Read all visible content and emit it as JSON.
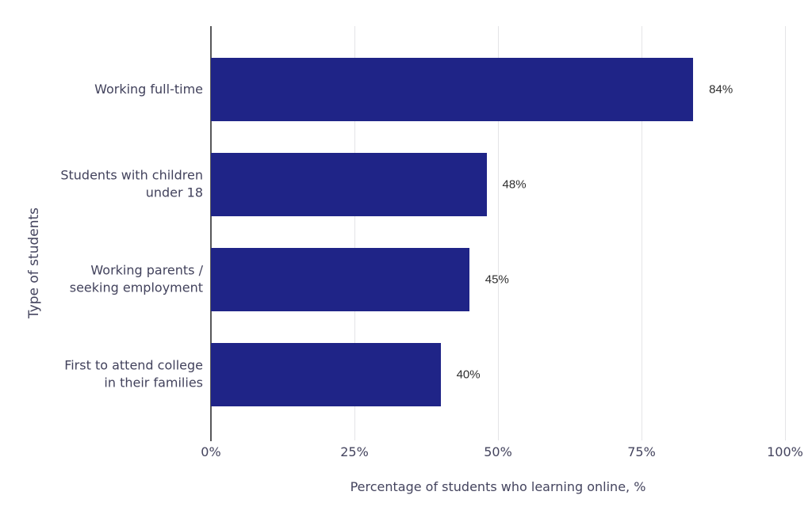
{
  "chart_data": {
    "type": "bar",
    "orientation": "horizontal",
    "title": "",
    "categories": [
      "Working full-time",
      "Students with children under 18",
      "Working parents / seeking employment",
      "First to attend college in their families"
    ],
    "category_lines": [
      [
        "Working full-time"
      ],
      [
        "Students with children",
        "under 18"
      ],
      [
        "Working parents /",
        "seeking employment"
      ],
      [
        "First to attend college",
        "in their families"
      ]
    ],
    "values": [
      84,
      48,
      45,
      40
    ],
    "value_labels": [
      "84%",
      "48%",
      "45%",
      "40%"
    ],
    "xlabel": "Percentage of students who learning online, %",
    "ylabel": "Type of students",
    "xlim": [
      0,
      100
    ],
    "x_ticks": [
      {
        "value": 0,
        "label": "0%"
      },
      {
        "value": 25,
        "label": "25%"
      },
      {
        "value": 50,
        "label": "50%"
      },
      {
        "value": 75,
        "label": "75%"
      },
      {
        "value": 100,
        "label": "100%"
      }
    ],
    "grid": true,
    "legend_position": "none",
    "colors": {
      "bar": "#1f2487",
      "axis_text": "#44445e",
      "category_text": "#42425c",
      "value_text": "#2e2e2e",
      "gridline": "#e4e4e7",
      "axis_line": "#58585a",
      "background": "#ffffff"
    }
  }
}
